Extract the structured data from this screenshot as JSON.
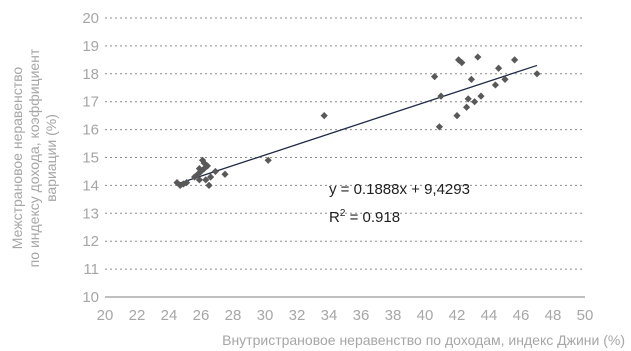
{
  "chart_data": {
    "type": "scatter",
    "xlabel": "Внутристрановое неравенство по доходам, индекс Джини (%)",
    "ylabel_lines": [
      "Межстрановое неравенство",
      "по индексу дохода, коэффициент",
      "вариации (%)"
    ],
    "xlim": [
      20,
      50
    ],
    "ylim": [
      10,
      20
    ],
    "x_ticks": [
      20,
      22,
      24,
      26,
      28,
      30,
      32,
      34,
      36,
      38,
      40,
      42,
      44,
      46,
      48,
      50
    ],
    "y_ticks": [
      10,
      11,
      12,
      13,
      14,
      15,
      16,
      17,
      18,
      19,
      20
    ],
    "grid": "horizontal-dotted",
    "points": [
      {
        "x": 24.5,
        "y": 14.1
      },
      {
        "x": 24.7,
        "y": 14.0
      },
      {
        "x": 24.9,
        "y": 14.05
      },
      {
        "x": 25.1,
        "y": 14.1
      },
      {
        "x": 25.6,
        "y": 14.3
      },
      {
        "x": 25.8,
        "y": 14.4
      },
      {
        "x": 25.9,
        "y": 14.2
      },
      {
        "x": 26.0,
        "y": 14.5
      },
      {
        "x": 26.1,
        "y": 14.9
      },
      {
        "x": 26.2,
        "y": 14.6
      },
      {
        "x": 26.3,
        "y": 14.2
      },
      {
        "x": 26.4,
        "y": 14.7
      },
      {
        "x": 26.5,
        "y": 14.0
      },
      {
        "x": 26.6,
        "y": 14.3
      },
      {
        "x": 26.2,
        "y": 14.8
      },
      {
        "x": 25.9,
        "y": 14.6
      },
      {
        "x": 26.9,
        "y": 14.5
      },
      {
        "x": 27.5,
        "y": 14.4
      },
      {
        "x": 30.2,
        "y": 14.9
      },
      {
        "x": 33.7,
        "y": 16.5
      },
      {
        "x": 40.6,
        "y": 17.9
      },
      {
        "x": 40.9,
        "y": 16.1
      },
      {
        "x": 41.0,
        "y": 17.2
      },
      {
        "x": 42.0,
        "y": 16.5
      },
      {
        "x": 42.1,
        "y": 18.5
      },
      {
        "x": 42.3,
        "y": 18.4
      },
      {
        "x": 42.6,
        "y": 16.8
      },
      {
        "x": 42.7,
        "y": 17.1
      },
      {
        "x": 42.9,
        "y": 17.8
      },
      {
        "x": 43.1,
        "y": 17.0
      },
      {
        "x": 43.3,
        "y": 18.6
      },
      {
        "x": 43.5,
        "y": 17.2
      },
      {
        "x": 44.4,
        "y": 17.6
      },
      {
        "x": 44.6,
        "y": 18.2
      },
      {
        "x": 45.0,
        "y": 17.8
      },
      {
        "x": 45.6,
        "y": 18.5
      },
      {
        "x": 47.0,
        "y": 18.0
      }
    ],
    "trendline": {
      "x": [
        24.5,
        47.0
      ],
      "y": [
        14.05,
        18.3
      ]
    },
    "equation": "y = 0.1888x + 9,4293",
    "r2_base": "R",
    "r2_sup": "2",
    "r2_value": " = 0.918",
    "colors": {
      "points": "#595959",
      "trendline": "#1f2a44",
      "grid": "#8c8c8c",
      "text": "#a6a6a6"
    }
  }
}
